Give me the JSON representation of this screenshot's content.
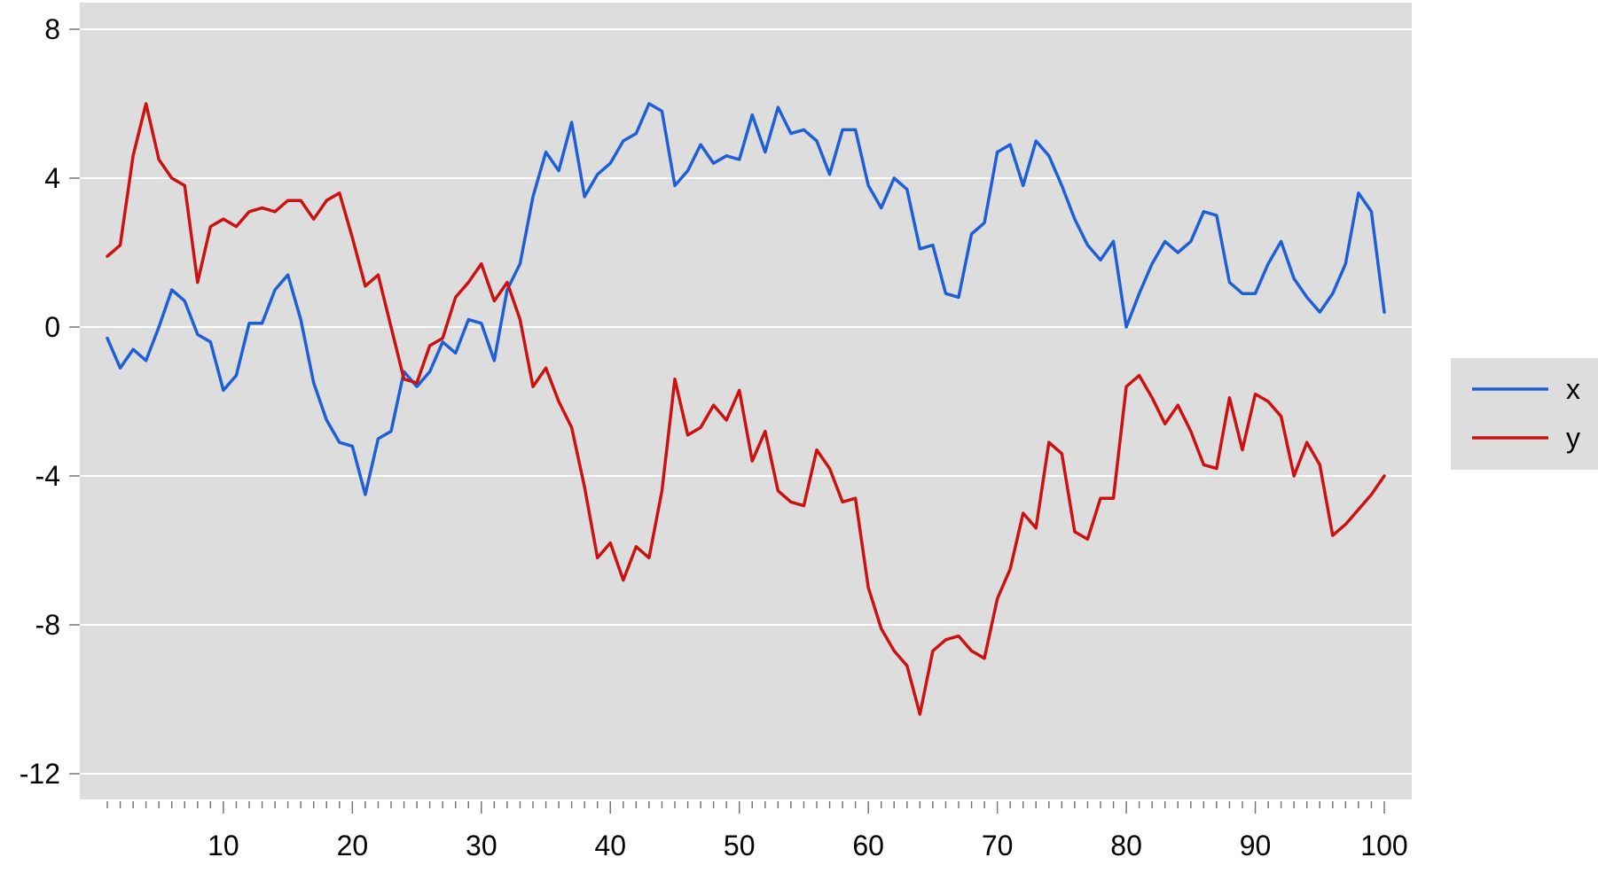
{
  "chart_data": {
    "type": "line",
    "title": "",
    "xlabel": "",
    "ylabel": "",
    "xlim": [
      0,
      101
    ],
    "ylim": [
      -12.7,
      8.6
    ],
    "x_ticks": [
      10,
      20,
      30,
      40,
      50,
      60,
      70,
      80,
      90,
      100
    ],
    "x_tick_labels": [
      "10",
      "20",
      "30",
      "40",
      "50",
      "60",
      "70",
      "80",
      "90",
      "100"
    ],
    "y_ticks": [
      8,
      4,
      0,
      -4,
      -8,
      -12
    ],
    "y_tick_labels": [
      "8",
      "4",
      "0",
      "-4",
      "-8",
      "-12"
    ],
    "grid": "horizontal",
    "legend_position": "right",
    "background_color": "#dddddd",
    "x": [
      1,
      2,
      3,
      4,
      5,
      6,
      7,
      8,
      9,
      10,
      11,
      12,
      13,
      14,
      15,
      16,
      17,
      18,
      19,
      20,
      21,
      22,
      23,
      24,
      25,
      26,
      27,
      28,
      29,
      30,
      31,
      32,
      33,
      34,
      35,
      36,
      37,
      38,
      39,
      40,
      41,
      42,
      43,
      44,
      45,
      46,
      47,
      48,
      49,
      50,
      51,
      52,
      53,
      54,
      55,
      56,
      57,
      58,
      59,
      60,
      61,
      62,
      63,
      64,
      65,
      66,
      67,
      68,
      69,
      70,
      71,
      72,
      73,
      74,
      75,
      76,
      77,
      78,
      79,
      80,
      81,
      82,
      83,
      84,
      85,
      86,
      87,
      88,
      89,
      90,
      91,
      92,
      93,
      94,
      95,
      96,
      97,
      98,
      99,
      100
    ],
    "series": [
      {
        "name": "x",
        "color": "#1f5fd6",
        "values": [
          -0.3,
          -1.1,
          -0.6,
          -0.9,
          0.0,
          1.0,
          0.7,
          -0.2,
          -0.4,
          -1.7,
          -1.3,
          0.1,
          0.1,
          1.0,
          1.4,
          0.2,
          -1.5,
          -2.5,
          -3.1,
          -3.2,
          -4.5,
          -3.0,
          -2.8,
          -1.2,
          -1.6,
          -1.2,
          -0.4,
          -0.7,
          0.2,
          0.1,
          -0.9,
          1.0,
          1.7,
          3.5,
          4.7,
          4.2,
          5.5,
          3.5,
          4.1,
          4.4,
          5.0,
          5.2,
          6.0,
          5.8,
          3.8,
          4.2,
          4.9,
          4.4,
          4.6,
          4.5,
          5.7,
          4.7,
          5.9,
          5.2,
          5.3,
          5.0,
          4.1,
          5.3,
          5.3,
          3.8,
          3.2,
          4.0,
          3.7,
          2.1,
          2.2,
          0.9,
          0.8,
          2.5,
          2.8,
          4.7,
          4.9,
          3.8,
          5.0,
          4.6,
          3.8,
          2.9,
          2.2,
          1.8,
          2.3,
          0.0,
          0.9,
          1.7,
          2.3,
          2.0,
          2.3,
          3.1,
          3.0,
          1.2,
          0.9,
          0.9,
          1.7,
          2.3,
          1.3,
          0.8,
          0.4,
          0.9,
          1.7,
          3.6,
          3.1,
          0.4
        ]
      },
      {
        "name": "y",
        "color": "#cc1111",
        "values": [
          1.9,
          2.2,
          4.6,
          6.0,
          4.5,
          4.0,
          3.8,
          1.2,
          2.7,
          2.9,
          2.7,
          3.1,
          3.2,
          3.1,
          3.4,
          3.4,
          2.9,
          3.4,
          3.6,
          2.4,
          1.1,
          1.4,
          0.0,
          -1.4,
          -1.5,
          -0.5,
          -0.3,
          0.8,
          1.2,
          1.7,
          0.7,
          1.2,
          0.2,
          -1.6,
          -1.1,
          -2.0,
          -2.7,
          -4.3,
          -6.2,
          -5.8,
          -6.8,
          -5.9,
          -6.2,
          -4.4,
          -1.4,
          -2.9,
          -2.7,
          -2.1,
          -2.5,
          -1.7,
          -3.6,
          -2.8,
          -4.4,
          -4.7,
          -4.8,
          -3.3,
          -3.8,
          -4.7,
          -4.6,
          -7.0,
          -8.1,
          -8.7,
          -9.1,
          -10.4,
          -8.7,
          -8.4,
          -8.3,
          -8.7,
          -8.9,
          -7.3,
          -6.5,
          -5.0,
          -5.4,
          -3.1,
          -3.4,
          -5.5,
          -5.7,
          -4.6,
          -4.6,
          -1.6,
          -1.3,
          -1.9,
          -2.6,
          -2.1,
          -2.8,
          -3.7,
          -3.8,
          -1.9,
          -3.3,
          -1.8,
          -2.0,
          -2.4,
          -4.0,
          -3.1,
          -3.7,
          -5.6,
          -5.3,
          -4.9,
          -4.5,
          -4.0
        ]
      }
    ]
  }
}
